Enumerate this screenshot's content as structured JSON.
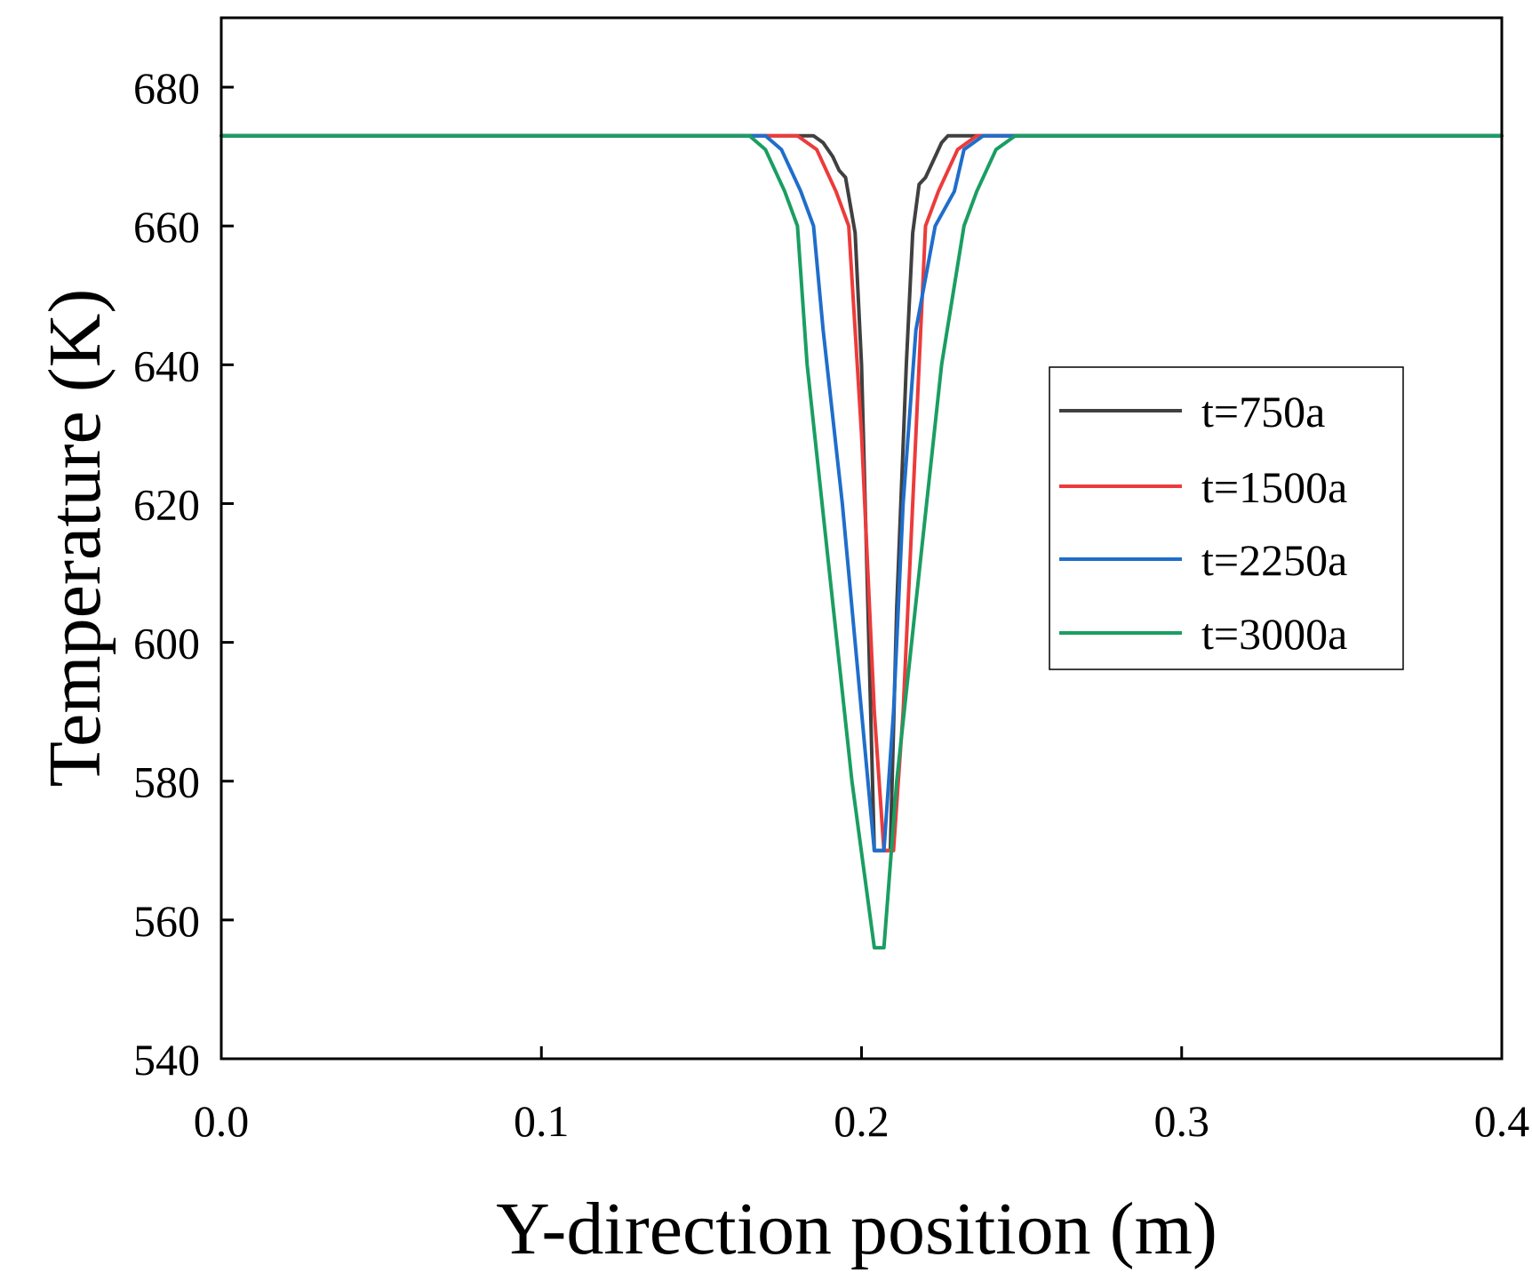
{
  "chart_data": {
    "type": "line",
    "title": "",
    "xlabel": "Y-direction position (m)",
    "ylabel": "Temperature (K)",
    "xlim": [
      0.0,
      0.4
    ],
    "ylim": [
      540,
      690
    ],
    "xticks": [
      0.0,
      0.1,
      0.2,
      0.3,
      0.4
    ],
    "xtick_labels": [
      "0.0",
      "0.1",
      "0.2",
      "0.3",
      "0.4"
    ],
    "yticks": [
      540,
      560,
      580,
      600,
      620,
      640,
      660,
      680
    ],
    "ytick_labels": [
      "540",
      "560",
      "580",
      "600",
      "620",
      "640",
      "660",
      "680"
    ],
    "grid": false,
    "legend_position": "center-right",
    "series": [
      {
        "name": "t=750a",
        "color": "#404040",
        "x": [
          0.0,
          0.18,
          0.185,
          0.188,
          0.191,
          0.193,
          0.195,
          0.198,
          0.2,
          0.202,
          0.204,
          0.207,
          0.209,
          0.211,
          0.214,
          0.216,
          0.218,
          0.22,
          0.223,
          0.225,
          0.227,
          0.23,
          0.233,
          0.236,
          0.4
        ],
        "y": [
          673,
          673,
          673,
          672,
          670,
          668,
          667,
          659,
          640,
          605,
          570,
          570,
          570,
          605,
          640,
          659,
          666,
          667,
          670,
          672,
          673,
          673,
          673,
          673,
          673
        ]
      },
      {
        "name": "t=1500a",
        "color": "#ec3b3b",
        "x": [
          0.0,
          0.175,
          0.18,
          0.186,
          0.192,
          0.196,
          0.2,
          0.204,
          0.207,
          0.21,
          0.213,
          0.217,
          0.22,
          0.224,
          0.23,
          0.236,
          0.241,
          0.4
        ],
        "y": [
          673,
          673,
          673,
          671,
          665,
          660,
          630,
          590,
          570,
          570,
          590,
          630,
          660,
          665,
          671,
          673,
          673,
          673
        ]
      },
      {
        "name": "t=2250a",
        "color": "#1f6ecb",
        "x": [
          0.0,
          0.17,
          0.175,
          0.181,
          0.185,
          0.188,
          0.194,
          0.2,
          0.204,
          0.207,
          0.21,
          0.213,
          0.217,
          0.223,
          0.229,
          0.232,
          0.238,
          0.243,
          0.4
        ],
        "y": [
          673,
          673,
          671,
          665,
          660,
          645,
          620,
          590,
          570,
          570,
          590,
          620,
          645,
          660,
          665,
          671,
          673,
          673,
          673
        ]
      },
      {
        "name": "t=3000a",
        "color": "#1a9e62",
        "x": [
          0.0,
          0.16,
          0.165,
          0.17,
          0.176,
          0.18,
          0.183,
          0.19,
          0.197,
          0.204,
          0.207,
          0.211,
          0.218,
          0.225,
          0.232,
          0.236,
          0.242,
          0.248,
          0.254,
          0.4
        ],
        "y": [
          673,
          673,
          673,
          671,
          665,
          660,
          640,
          610,
          580,
          556,
          556,
          580,
          610,
          640,
          660,
          665,
          671,
          673,
          673,
          673
        ]
      }
    ]
  }
}
